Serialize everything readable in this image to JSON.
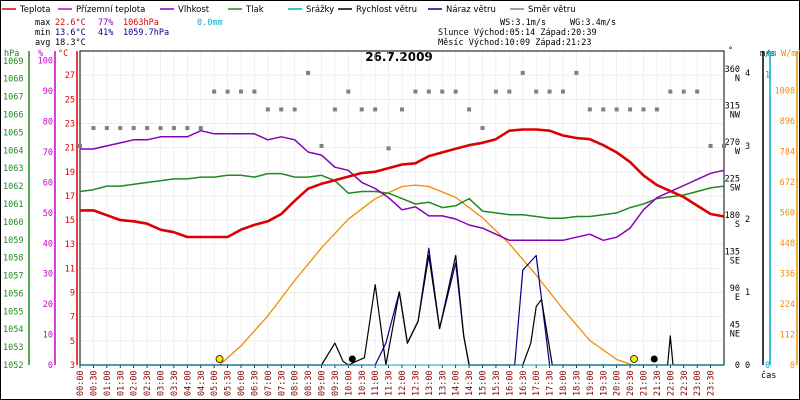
{
  "title": "26.7.2009",
  "time_label": "čas",
  "colors": {
    "temp": "#dd0000",
    "dew": "#cc00cc",
    "humidity": "#8800bb",
    "pressure": "#228822",
    "rain": "#00aacc",
    "wind_speed": "#000000",
    "gust": "#000088",
    "wind_dir": "#808080",
    "sun": "#f28c00",
    "grid": "#e6e6e6",
    "frame": "#000000"
  },
  "legend": [
    {
      "label": "Teplota",
      "color": "#dd0000",
      "kind": "line"
    },
    {
      "label": "Přízemní teplota",
      "color": "#cc00cc",
      "kind": "line"
    },
    {
      "label": "Vlhkost",
      "color": "#8800bb",
      "kind": "line"
    },
    {
      "label": "Tlak",
      "color": "#228822",
      "kind": "line"
    },
    {
      "label": "Srážky",
      "color": "#00aacc",
      "kind": "line"
    },
    {
      "label": "Rychlost větru",
      "color": "#000000",
      "kind": "line"
    },
    {
      "label": "Náraz větru",
      "color": "#000088",
      "kind": "line"
    },
    {
      "label": "Směr větru",
      "color": "#808080",
      "kind": "line"
    }
  ],
  "stats": {
    "max_label": "max",
    "max_temp": "22.6°C",
    "max_hum": "77%",
    "max_press": "1063hPa",
    "rain": "0.0mm",
    "min_label": "min",
    "min_temp": "13.6°C",
    "min_hum": "41%",
    "min_press": "1059.7hPa",
    "avg_label": "avg",
    "avg_temp": "18.3°C",
    "ws": "WS:3.1m/s",
    "wg": "WG:3.4m/s",
    "sun_line": "Slunce Východ:05:14  Západ:20:39",
    "moon_line": "Měsíc  Východ:10:09  Západ:21:23"
  },
  "axis_titles": {
    "hpa": "hPa",
    "percent": "%",
    "celsius": "°C",
    "deg": "°",
    "ms": "m/s",
    "mm": "mm",
    "wm2": "W/m²"
  },
  "axes": {
    "hpa_ticks": [
      "1052",
      "1053",
      "1054",
      "1055",
      "1056",
      "1057",
      "1058",
      "1059",
      "1060",
      "1061",
      "1062",
      "1063",
      "1064",
      "1065",
      "1066",
      "1067",
      "1068",
      "1069"
    ],
    "percent_ticks": [
      "0",
      "10",
      "20",
      "30",
      "40",
      "50",
      "60",
      "70",
      "80",
      "90",
      "100"
    ],
    "celsius_ticks": [
      "3",
      "5",
      "7",
      "9",
      "11",
      "13",
      "15",
      "17",
      "19",
      "21",
      "23",
      "25",
      "27"
    ],
    "dir_ticks": [
      "0",
      "45\nNE",
      "90\nE",
      "135\nSE",
      "180\nS",
      "225\nSW",
      "270\nW",
      "315\nNW",
      "360\nN"
    ],
    "ms_ticks": [
      "0",
      "1",
      "2",
      "3",
      "4"
    ],
    "mm_ticks": [
      "0",
      "1"
    ],
    "wm2_ticks": [
      "0",
      "112",
      "224",
      "336",
      "448",
      "560",
      "672",
      "784",
      "896",
      "1008"
    ],
    "x_ticks": [
      "00:00",
      "00:30",
      "01:00",
      "01:30",
      "02:00",
      "02:30",
      "03:00",
      "03:30",
      "04:00",
      "04:30",
      "05:00",
      "05:30",
      "06:00",
      "06:30",
      "07:00",
      "07:30",
      "08:00",
      "08:30",
      "09:00",
      "09:30",
      "10:00",
      "10:30",
      "11:00",
      "11:30",
      "12:00",
      "12:30",
      "13:00",
      "13:30",
      "14:00",
      "14:30",
      "15:00",
      "15:30",
      "16:00",
      "16:30",
      "17:00",
      "17:30",
      "18:00",
      "18:30",
      "19:00",
      "19:30",
      "20:00",
      "20:30",
      "21:00",
      "21:30",
      "22:00",
      "22:30",
      "23:00",
      "23:30"
    ]
  },
  "chart_data": {
    "type": "line",
    "title": "26.7.2009",
    "x_unit": "hours",
    "xlim": [
      0,
      24
    ],
    "ylims": {
      "celsius": [
        3,
        29
      ],
      "percent": [
        0,
        103.2
      ],
      "hpa": [
        1052,
        1069.55
      ],
      "wind_ms": [
        0,
        4.3
      ],
      "wind_dir_deg": [
        0,
        387
      ],
      "solar_wm2": [
        0,
        1152
      ],
      "rain_mm": [
        0,
        1.08
      ]
    },
    "series": [
      {
        "name": "Teplota",
        "axis": "celsius",
        "points": [
          [
            0,
            15.8
          ],
          [
            0.5,
            15.8
          ],
          [
            1,
            15.4
          ],
          [
            1.5,
            15.0
          ],
          [
            2,
            14.9
          ],
          [
            2.5,
            14.7
          ],
          [
            3,
            14.2
          ],
          [
            3.5,
            14.0
          ],
          [
            4,
            13.6
          ],
          [
            4.5,
            13.6
          ],
          [
            5,
            13.6
          ],
          [
            5.5,
            13.6
          ],
          [
            6,
            14.2
          ],
          [
            6.5,
            14.6
          ],
          [
            7,
            14.9
          ],
          [
            7.5,
            15.5
          ],
          [
            8,
            16.6
          ],
          [
            8.5,
            17.6
          ],
          [
            9,
            18.0
          ],
          [
            9.5,
            18.3
          ],
          [
            10,
            18.6
          ],
          [
            10.5,
            18.9
          ],
          [
            11,
            19.0
          ],
          [
            11.5,
            19.3
          ],
          [
            12,
            19.6
          ],
          [
            12.5,
            19.7
          ],
          [
            13,
            20.3
          ],
          [
            13.5,
            20.6
          ],
          [
            14,
            20.9
          ],
          [
            14.5,
            21.2
          ],
          [
            15,
            21.4
          ],
          [
            15.5,
            21.7
          ],
          [
            16,
            22.4
          ],
          [
            16.5,
            22.5
          ],
          [
            17,
            22.5
          ],
          [
            17.5,
            22.4
          ],
          [
            18,
            22.0
          ],
          [
            18.5,
            21.8
          ],
          [
            19,
            21.7
          ],
          [
            19.5,
            21.2
          ],
          [
            20,
            20.6
          ],
          [
            20.5,
            19.8
          ],
          [
            21,
            18.7
          ],
          [
            21.5,
            17.9
          ],
          [
            22,
            17.4
          ],
          [
            22.5,
            16.9
          ],
          [
            23,
            16.2
          ],
          [
            23.5,
            15.5
          ],
          [
            24,
            15.3
          ]
        ]
      },
      {
        "name": "Vlhkost",
        "axis": "percent",
        "points": [
          [
            0,
            71
          ],
          [
            0.5,
            71
          ],
          [
            1,
            72
          ],
          [
            1.5,
            73
          ],
          [
            2,
            74
          ],
          [
            2.5,
            74
          ],
          [
            3,
            75
          ],
          [
            3.5,
            75
          ],
          [
            4,
            75
          ],
          [
            4.5,
            77
          ],
          [
            5,
            76
          ],
          [
            5.5,
            76
          ],
          [
            6,
            76
          ],
          [
            6.5,
            76
          ],
          [
            7,
            74
          ],
          [
            7.5,
            75
          ],
          [
            8,
            74
          ],
          [
            8.5,
            70
          ],
          [
            9,
            69
          ],
          [
            9.5,
            65
          ],
          [
            10,
            64
          ],
          [
            10.5,
            60
          ],
          [
            11,
            58
          ],
          [
            11.5,
            55
          ],
          [
            12,
            51
          ],
          [
            12.5,
            52
          ],
          [
            13,
            49
          ],
          [
            13.5,
            49
          ],
          [
            14,
            48
          ],
          [
            14.5,
            46
          ],
          [
            15,
            45
          ],
          [
            15.5,
            43
          ],
          [
            16,
            41
          ],
          [
            16.5,
            41
          ],
          [
            17,
            41
          ],
          [
            17.5,
            41
          ],
          [
            18,
            41
          ],
          [
            18.5,
            42
          ],
          [
            19,
            43
          ],
          [
            19.5,
            41
          ],
          [
            20,
            42
          ],
          [
            20.5,
            45
          ],
          [
            21,
            51
          ],
          [
            21.5,
            55
          ],
          [
            22,
            57
          ],
          [
            22.5,
            59
          ],
          [
            23,
            61
          ],
          [
            23.5,
            63
          ],
          [
            24,
            64
          ]
        ]
      },
      {
        "name": "Tlak",
        "axis": "hpa",
        "points": [
          [
            0,
            1061.7
          ],
          [
            0.5,
            1061.8
          ],
          [
            1,
            1062.0
          ],
          [
            1.5,
            1062.0
          ],
          [
            2,
            1062.1
          ],
          [
            2.5,
            1062.2
          ],
          [
            3,
            1062.3
          ],
          [
            3.5,
            1062.4
          ],
          [
            4,
            1062.4
          ],
          [
            4.5,
            1062.5
          ],
          [
            5,
            1062.5
          ],
          [
            5.5,
            1062.6
          ],
          [
            6,
            1062.6
          ],
          [
            6.5,
            1062.5
          ],
          [
            7,
            1062.7
          ],
          [
            7.5,
            1062.7
          ],
          [
            8,
            1062.5
          ],
          [
            8.5,
            1062.5
          ],
          [
            9,
            1062.6
          ],
          [
            9.5,
            1062.3
          ],
          [
            10,
            1061.6
          ],
          [
            10.5,
            1061.7
          ],
          [
            11,
            1061.7
          ],
          [
            11.5,
            1061.6
          ],
          [
            12,
            1061.3
          ],
          [
            12.5,
            1061.0
          ],
          [
            13,
            1061.1
          ],
          [
            13.5,
            1060.8
          ],
          [
            14,
            1060.9
          ],
          [
            14.5,
            1061.3
          ],
          [
            15,
            1060.6
          ],
          [
            15.5,
            1060.5
          ],
          [
            16,
            1060.4
          ],
          [
            16.5,
            1060.4
          ],
          [
            17,
            1060.3
          ],
          [
            17.5,
            1060.2
          ],
          [
            18,
            1060.2
          ],
          [
            18.5,
            1060.3
          ],
          [
            19,
            1060.3
          ],
          [
            19.5,
            1060.4
          ],
          [
            20,
            1060.5
          ],
          [
            20.5,
            1060.8
          ],
          [
            21,
            1061.0
          ],
          [
            21.5,
            1061.3
          ],
          [
            22,
            1061.4
          ],
          [
            22.5,
            1061.5
          ],
          [
            23,
            1061.7
          ],
          [
            23.5,
            1061.9
          ],
          [
            24,
            1062.0
          ]
        ]
      },
      {
        "name": "Rychlost větru",
        "axis": "wind_ms",
        "points": [
          [
            0,
            0
          ],
          [
            9,
            0
          ],
          [
            9.5,
            0.3
          ],
          [
            9.8,
            0.05
          ],
          [
            10,
            0
          ],
          [
            10.6,
            0.1
          ],
          [
            11,
            1.1
          ],
          [
            11.4,
            0
          ],
          [
            11.9,
            1.0
          ],
          [
            12.2,
            0.3
          ],
          [
            12.6,
            0.6
          ],
          [
            13,
            1.5
          ],
          [
            13.4,
            0.5
          ],
          [
            14,
            1.5
          ],
          [
            14.3,
            0.4
          ],
          [
            14.5,
            0
          ],
          [
            16.5,
            0
          ],
          [
            16.8,
            0.3
          ],
          [
            17.0,
            0.8
          ],
          [
            17.2,
            0.9
          ],
          [
            17.6,
            0
          ],
          [
            21.9,
            0
          ],
          [
            22.0,
            0.4
          ],
          [
            22.1,
            0
          ],
          [
            24,
            0
          ]
        ]
      },
      {
        "name": "Náraz větru",
        "axis": "wind_ms",
        "points": [
          [
            0,
            0
          ],
          [
            11,
            0
          ],
          [
            11.4,
            0.3
          ],
          [
            11.9,
            1.0
          ],
          [
            12.2,
            0.3
          ],
          [
            12.6,
            0.6
          ],
          [
            13,
            1.6
          ],
          [
            13.4,
            0.5
          ],
          [
            14,
            1.4
          ],
          [
            14.3,
            0.4
          ],
          [
            14.5,
            0
          ],
          [
            16.2,
            0
          ],
          [
            16.5,
            1.3
          ],
          [
            17.0,
            1.5
          ],
          [
            17.5,
            0
          ],
          [
            24,
            0
          ]
        ]
      },
      {
        "name": "Srážky",
        "axis": "rain_mm",
        "points": [
          [
            0,
            0
          ],
          [
            24,
            0
          ]
        ]
      },
      {
        "name": "Sluneční záření",
        "axis": "solar_wm2",
        "points": [
          [
            5.2,
            0
          ],
          [
            6,
            70
          ],
          [
            7,
            180
          ],
          [
            8,
            310
          ],
          [
            9,
            430
          ],
          [
            10,
            535
          ],
          [
            11,
            610
          ],
          [
            12,
            655
          ],
          [
            12.5,
            660
          ],
          [
            13,
            655
          ],
          [
            14,
            615
          ],
          [
            15,
            540
          ],
          [
            16,
            445
          ],
          [
            17,
            330
          ],
          [
            18,
            205
          ],
          [
            19,
            90
          ],
          [
            20,
            20
          ],
          [
            20.6,
            0
          ]
        ]
      }
    ],
    "wind_direction": {
      "name": "Směr větru",
      "axis": "wind_dir_deg",
      "points": [
        [
          0,
          270
        ],
        [
          0.5,
          292
        ],
        [
          1,
          292
        ],
        [
          1.5,
          292
        ],
        [
          2,
          292
        ],
        [
          2.5,
          292
        ],
        [
          3,
          292
        ],
        [
          3.5,
          292
        ],
        [
          4,
          292
        ],
        [
          4.5,
          292
        ],
        [
          5,
          337
        ],
        [
          5.5,
          337
        ],
        [
          6,
          337
        ],
        [
          6.5,
          337
        ],
        [
          7,
          315
        ],
        [
          7.5,
          315
        ],
        [
          8,
          315
        ],
        [
          8.5,
          360
        ],
        [
          9,
          270
        ],
        [
          9.5,
          315
        ],
        [
          10,
          337
        ],
        [
          10.5,
          315
        ],
        [
          11,
          315
        ],
        [
          11.5,
          267
        ],
        [
          12,
          315
        ],
        [
          12.5,
          337
        ],
        [
          13,
          337
        ],
        [
          13.5,
          337
        ],
        [
          14,
          337
        ],
        [
          14.5,
          315
        ],
        [
          15,
          292
        ],
        [
          15.5,
          337
        ],
        [
          16,
          337
        ],
        [
          16.5,
          360
        ],
        [
          17,
          337
        ],
        [
          17.5,
          337
        ],
        [
          18,
          337
        ],
        [
          18.5,
          360
        ],
        [
          19,
          315
        ],
        [
          19.5,
          315
        ],
        [
          20,
          315
        ],
        [
          20.5,
          315
        ],
        [
          21,
          315
        ],
        [
          21.5,
          315
        ],
        [
          22,
          337
        ],
        [
          22.5,
          337
        ],
        [
          23,
          337
        ],
        [
          23.5,
          270
        ],
        [
          24,
          270
        ]
      ]
    },
    "sun_markers": [
      5.2,
      20.65
    ],
    "moon_markers": [
      10.15,
      21.4
    ]
  }
}
